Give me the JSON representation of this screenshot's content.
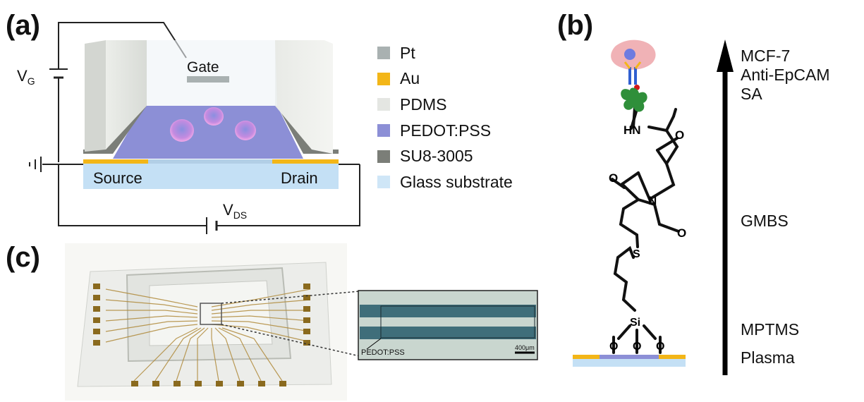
{
  "panels": {
    "a": "(a)",
    "b": "(b)",
    "c": "(c)"
  },
  "device": {
    "gate": "Gate",
    "source": "Source",
    "drain": "Drain",
    "vg_main": "V",
    "vg_sub": "G",
    "vds_main": "V",
    "vds_sub": "DS"
  },
  "legend": [
    {
      "label": "Pt",
      "color": "#a9b1b1"
    },
    {
      "label": "Au",
      "color": "#f3b618"
    },
    {
      "label": "PDMS",
      "color": "#e4e6e2"
    },
    {
      "label": "PEDOT:PSS",
      "color": "#8c8fd6"
    },
    {
      "label": "SU8-3005",
      "color": "#7b7e78"
    },
    {
      "label": "Glass substrate",
      "color": "#cfe6f7"
    }
  ],
  "molecule": {
    "hn": "HN",
    "o1": "O",
    "o2": "O",
    "o3": "O",
    "n": "N",
    "s": "S",
    "si": "Si",
    "o4": "O",
    "o5": "O",
    "o6": "O"
  },
  "stages": {
    "top": [
      "MCF-7",
      "Anti-EpCAM",
      "SA"
    ],
    "gmbs": "GMBS",
    "mptms": "MPTMS",
    "plasma": "Plasma"
  },
  "photo": {
    "inset_label": "PEDOT:PSS",
    "scale_bar": "400μm"
  }
}
